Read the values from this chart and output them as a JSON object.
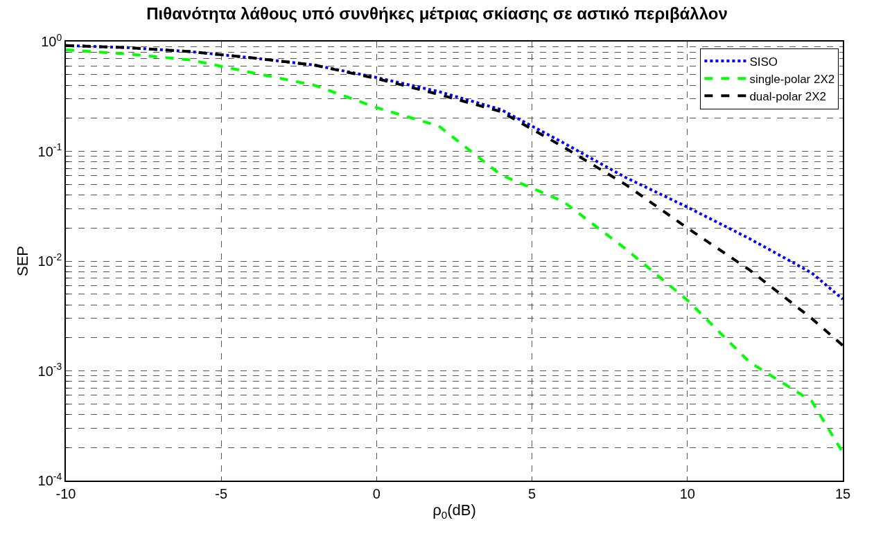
{
  "chart_data": {
    "type": "line",
    "title": "Πιθανότητα λάθους υπό συνθήκες μέτριας σκίασης σε αστικό περιβάλλον",
    "xlabel": "ρ$_{0}$(dB)",
    "ylabel": "SEP",
    "x": [
      -10,
      -8,
      -6,
      -4,
      -2,
      0,
      2,
      4,
      6,
      8,
      10,
      12,
      14,
      15
    ],
    "series": [
      {
        "name": "SISO",
        "color": "#0000ff",
        "line_style": "dotted",
        "values": [
          0.92,
          0.88,
          0.81,
          0.71,
          0.61,
          0.47,
          0.35,
          0.24,
          0.12,
          0.058,
          0.031,
          0.016,
          0.0078,
          0.0045
        ]
      },
      {
        "name": "single-polar 2X2",
        "color": "#00ff00",
        "line_style": "dashed",
        "values": [
          0.84,
          0.77,
          0.68,
          0.52,
          0.4,
          0.25,
          0.17,
          0.061,
          0.035,
          0.013,
          0.0044,
          0.0012,
          0.00053,
          0.00018
        ]
      },
      {
        "name": "dual-polar 2X2",
        "color": "#000000",
        "line_style": "dashed",
        "values": [
          0.92,
          0.88,
          0.81,
          0.71,
          0.61,
          0.46,
          0.33,
          0.23,
          0.11,
          0.05,
          0.02,
          0.0083,
          0.003,
          0.0017
        ]
      }
    ],
    "xlim": [
      -10,
      15
    ],
    "xticks": [
      -10,
      -5,
      0,
      5,
      10,
      15
    ],
    "ylim": [
      0.0001,
      1
    ],
    "yticks": [
      {
        "value": 0.0001,
        "label": "10$^{-4}$"
      },
      {
        "value": 0.001,
        "label": "10$^{-3}$"
      },
      {
        "value": 0.01,
        "label": "10$^{-2}$"
      },
      {
        "value": 0.1,
        "label": "10$^{-1}$"
      },
      {
        "value": 1,
        "label": "10$^{0}$"
      }
    ],
    "log": "y",
    "grid": true,
    "legend": "top right",
    "marker": "none"
  }
}
